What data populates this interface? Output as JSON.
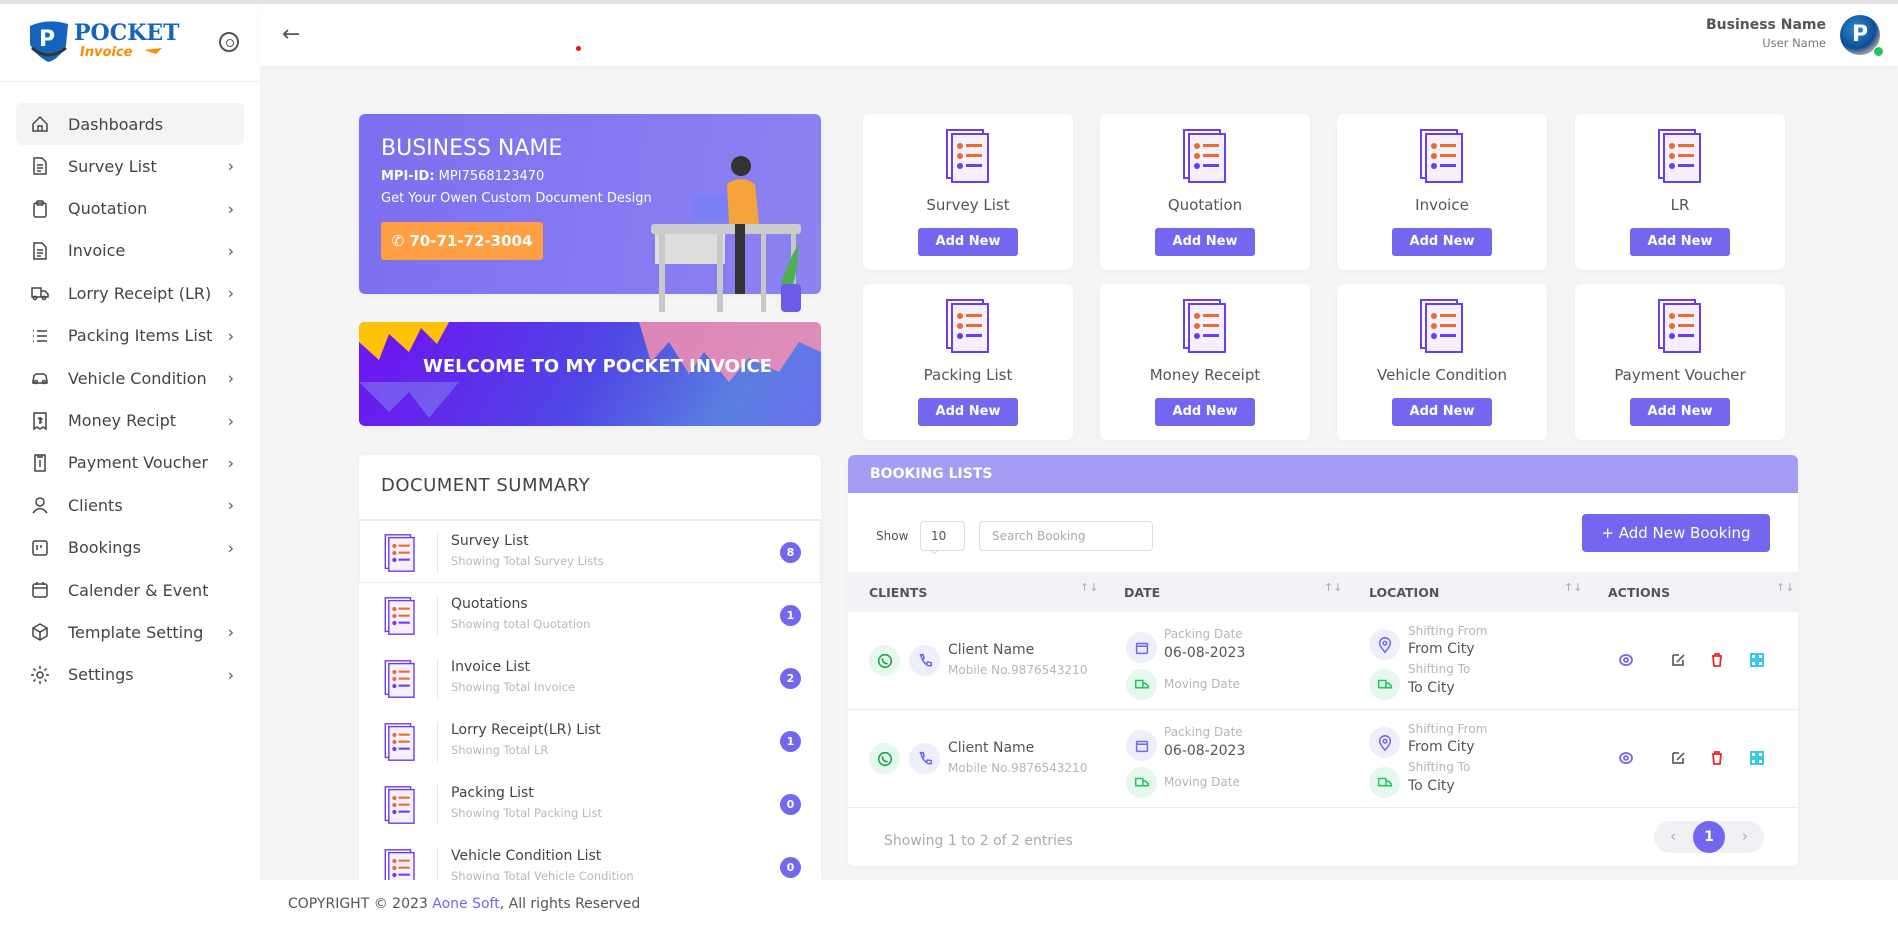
{
  "brand": {
    "logo_text": "my POCKET Invoice"
  },
  "sidebar": {
    "items": [
      {
        "label": "Dashboards",
        "icon": "home-icon",
        "active": true,
        "chevron": false
      },
      {
        "label": "Survey List",
        "icon": "file-text-icon",
        "chevron": true
      },
      {
        "label": "Quotation",
        "icon": "clipboard-icon",
        "chevron": true
      },
      {
        "label": "Invoice",
        "icon": "file-text-icon",
        "chevron": true
      },
      {
        "label": "Lorry Receipt (LR)",
        "icon": "truck-icon",
        "chevron": true
      },
      {
        "label": "Packing Items List",
        "icon": "list-icon",
        "chevron": true
      },
      {
        "label": "Vehicle Condition",
        "icon": "car-icon",
        "chevron": true
      },
      {
        "label": "Money Recipt",
        "icon": "receipt-icon",
        "chevron": true
      },
      {
        "label": "Payment Voucher",
        "icon": "voucher-icon",
        "chevron": true
      },
      {
        "label": "Clients",
        "icon": "user-icon",
        "chevron": true
      },
      {
        "label": "Bookings",
        "icon": "bookings-icon",
        "chevron": true
      },
      {
        "label": "Calender & Event",
        "icon": "calendar-icon",
        "chevron": false
      },
      {
        "label": "Template Setting",
        "icon": "box-icon",
        "chevron": true
      },
      {
        "label": "Settings",
        "icon": "gear-icon",
        "chevron": true
      }
    ],
    "chevron": "›"
  },
  "header": {
    "back": "←",
    "business_name": "Business Name",
    "user_name": "User Name",
    "avatar_letter": "P"
  },
  "profile": {
    "title": "BUSINESS NAME",
    "id_label": "MPI-ID:",
    "id_value": "MPI7568123470",
    "tagline": "Get Your Owen Custom Document Design",
    "phone": "70-71-72-3004"
  },
  "welcome": "WELCOME TO MY POCKET INVOICE",
  "tiles": [
    {
      "label": "Survey List",
      "button": "Add New"
    },
    {
      "label": "Quotation",
      "button": "Add New"
    },
    {
      "label": "Invoice",
      "button": "Add New"
    },
    {
      "label": "LR",
      "button": "Add New"
    },
    {
      "label": "Packing List",
      "button": "Add New"
    },
    {
      "label": "Money Receipt",
      "button": "Add New"
    },
    {
      "label": "Vehicle Condition",
      "button": "Add New"
    },
    {
      "label": "Payment Voucher",
      "button": "Add New"
    }
  ],
  "summary": {
    "title": "DOCUMENT SUMMARY",
    "items": [
      {
        "title": "Survey List",
        "subtitle": "Showing Total Survey Lists",
        "count": "8"
      },
      {
        "title": "Quotations",
        "subtitle": "Showing total Quotation",
        "count": "1"
      },
      {
        "title": "Invoice List",
        "subtitle": "Showing Total Invoice",
        "count": "2"
      },
      {
        "title": "Lorry Receipt(LR) List",
        "subtitle": "Showing Total LR",
        "count": "1"
      },
      {
        "title": "Packing List",
        "subtitle": "Showing Total Packing List",
        "count": "0"
      },
      {
        "title": "Vehicle Condition List",
        "subtitle": "Showing Total Vehicle Condition",
        "count": "0"
      }
    ]
  },
  "booking": {
    "title": "BOOKING LISTS",
    "show_label": "Show",
    "page_size": "10",
    "search_placeholder": "Search Booking",
    "add_button": "+ Add New Booking",
    "columns": [
      "CLIENTS",
      "DATE",
      "LOCATION",
      "ACTIONS"
    ],
    "rows": [
      {
        "client": "Client Name",
        "mobile": "Mobile No.9876543210",
        "packing_label": "Packing Date",
        "packing_date": "06-08-2023",
        "moving_label": "Moving Date",
        "from_label": "Shifting From",
        "from": "From City",
        "to_label": "Shifting To",
        "to": "To City"
      },
      {
        "client": "Client Name",
        "mobile": "Mobile No.9876543210",
        "packing_label": "Packing Date",
        "packing_date": "06-08-2023",
        "moving_label": "Moving Date",
        "from_label": "Shifting From",
        "from": "From City",
        "to_label": "Shifting To",
        "to": "To City"
      }
    ],
    "showing": "Showing 1 to 2 of 2 entries",
    "current_page": "1",
    "prev": "‹",
    "next": "›"
  },
  "footer": {
    "prefix": "COPYRIGHT © 2023 ",
    "company": "Aone Soft",
    "suffix": ", All rights Reserved"
  },
  "colors": {
    "primary": "#7367f0",
    "accent": "#ff9f43",
    "delete": "#ea2a2a",
    "grid": "#22c5e0",
    "online": "#22c55e"
  }
}
